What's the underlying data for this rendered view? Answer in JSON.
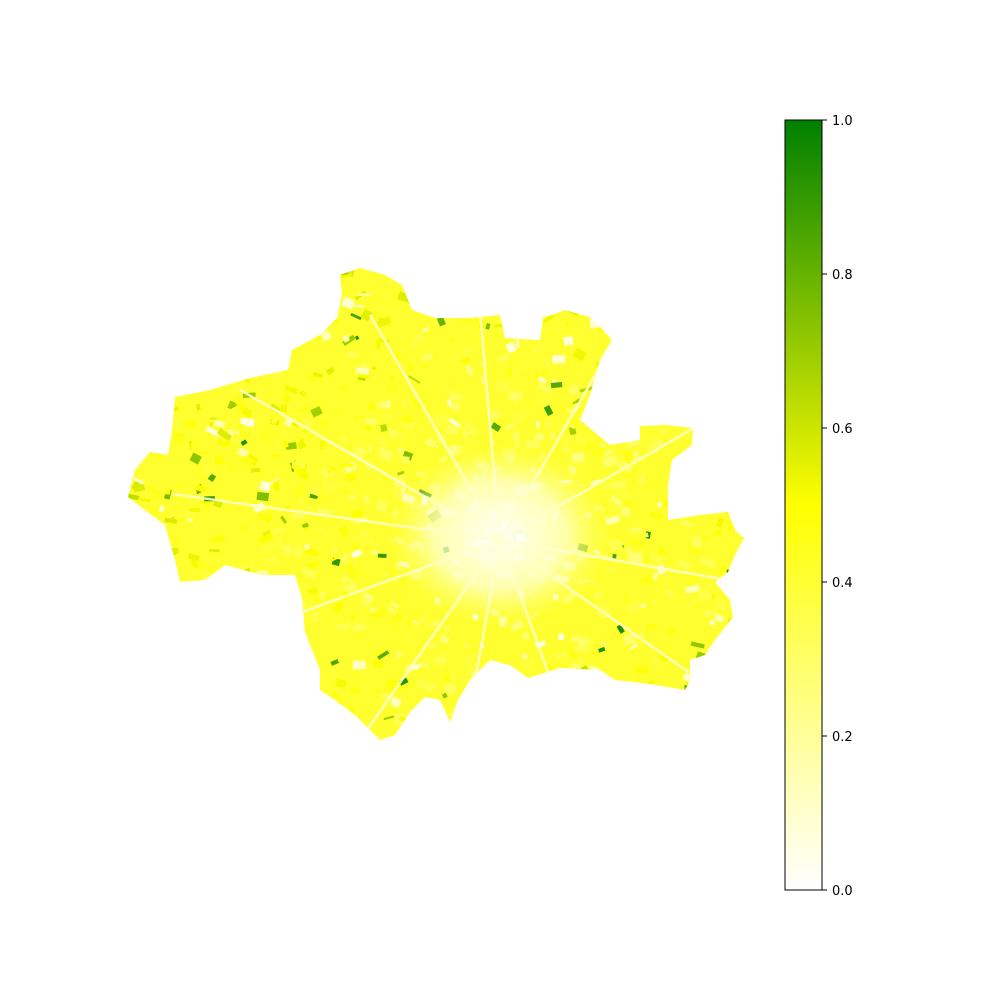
{
  "map": {
    "description_visible": "raster map of a city area colored by index value",
    "colormap": {
      "colors": [
        "#ffffff",
        "#ffff00",
        "#008000"
      ],
      "stops": [
        0.0,
        0.5,
        1.0
      ]
    }
  },
  "colorbar": {
    "range": [
      0.0,
      1.0
    ],
    "tick_labels": [
      "0.0",
      "0.2",
      "0.4",
      "0.6",
      "0.8",
      "1.0"
    ],
    "tick_values": [
      0.0,
      0.2,
      0.4,
      0.6,
      0.8,
      1.0
    ]
  }
}
